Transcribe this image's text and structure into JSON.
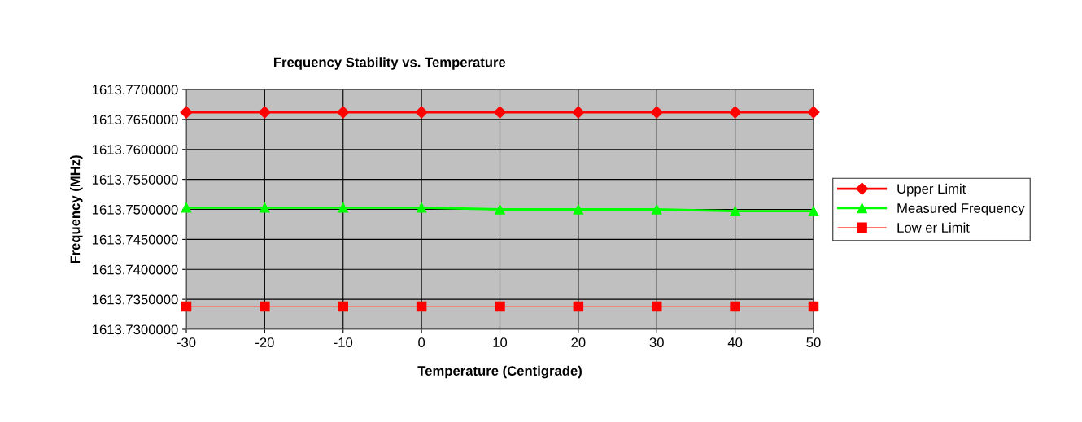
{
  "chart_data": {
    "type": "line",
    "title": "Frequency Stability vs. Temperature",
    "xlabel": "Temperature (Centigrade)",
    "ylabel": "Frequency (MHz)",
    "categories": [
      "-30",
      "-20",
      "-10",
      "0",
      "10",
      "20",
      "30",
      "40",
      "50"
    ],
    "series": [
      {
        "name": "Upper Limit",
        "color": "#ff0000",
        "marker": "diamond",
        "values": [
          1613.7662,
          1613.7662,
          1613.7662,
          1613.7662,
          1613.7662,
          1613.7662,
          1613.7662,
          1613.7662,
          1613.7662
        ]
      },
      {
        "name": "Measured Frequency",
        "color": "#00ff00",
        "marker": "triangle",
        "values": [
          1613.7503,
          1613.7503,
          1613.7503,
          1613.7503,
          1613.75,
          1613.75,
          1613.75,
          1613.7497,
          1613.7497
        ]
      },
      {
        "name": "Low er Limit",
        "color": "#ff0000",
        "marker": "square",
        "values": [
          1613.7338,
          1613.7338,
          1613.7338,
          1613.7338,
          1613.7338,
          1613.7338,
          1613.7338,
          1613.7338,
          1613.7338
        ]
      }
    ],
    "ylim": [
      1613.73,
      1613.77
    ],
    "yticks": [
      {
        "value": 1613.73,
        "label": "1613.7300000"
      },
      {
        "value": 1613.735,
        "label": "1613.7350000"
      },
      {
        "value": 1613.74,
        "label": "1613.7400000"
      },
      {
        "value": 1613.745,
        "label": "1613.7450000"
      },
      {
        "value": 1613.75,
        "label": "1613.7500000"
      },
      {
        "value": 1613.755,
        "label": "1613.7550000"
      },
      {
        "value": 1613.76,
        "label": "1613.7600000"
      },
      {
        "value": 1613.765,
        "label": "1613.7650000"
      },
      {
        "value": 1613.77,
        "label": "1613.7700000"
      }
    ],
    "grid": true,
    "legend": "right",
    "line_style": "solid"
  }
}
